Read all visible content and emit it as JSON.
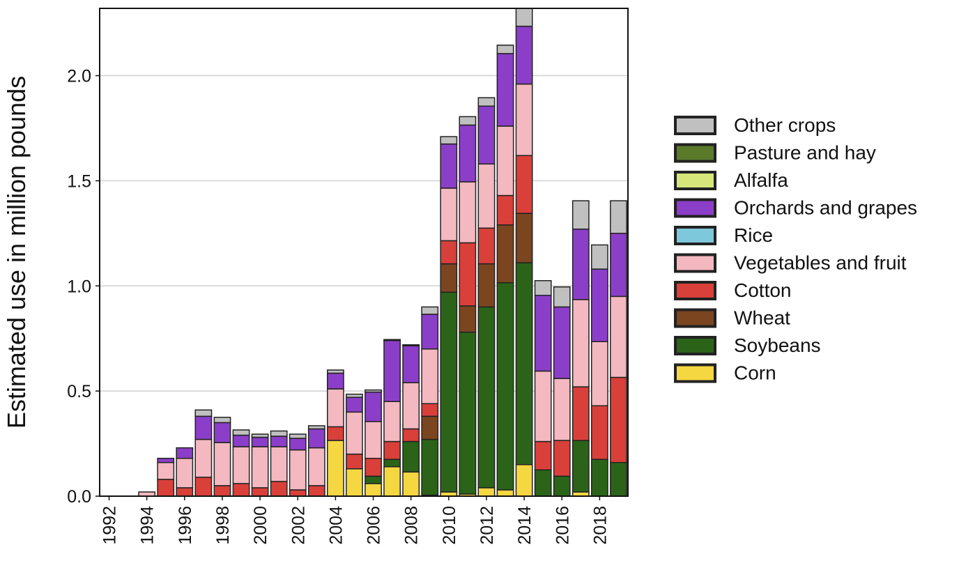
{
  "chart_data": {
    "type": "stacked-bar",
    "y_label": "Estimated use in million pounds",
    "x": [
      1992,
      1993,
      1994,
      1995,
      1996,
      1997,
      1998,
      1999,
      2000,
      2001,
      2002,
      2003,
      2004,
      2005,
      2006,
      2007,
      2008,
      2009,
      2010,
      2011,
      2012,
      2013,
      2014,
      2015,
      2016,
      2017,
      2018,
      2019
    ],
    "xlim": [
      1991.5,
      2019.5
    ],
    "xticks": [
      1992,
      1994,
      1996,
      1998,
      2000,
      2002,
      2004,
      2006,
      2008,
      2010,
      2012,
      2014,
      2016,
      2018
    ],
    "ylim": [
      0,
      2.32
    ],
    "yticks": [
      {
        "value": 0,
        "label": "0.0"
      },
      0.5,
      {
        "value": 1,
        "label": "1.0"
      },
      1.5,
      {
        "value": 2,
        "label": "2.0"
      }
    ],
    "grid": true,
    "legend": "right",
    "series": [
      {
        "name": "Corn",
        "color": "#f5d742",
        "values": [
          0,
          0,
          0,
          0,
          0,
          0,
          0,
          0,
          0,
          0,
          0,
          0,
          0.265,
          0.13,
          0.06,
          0.14,
          0.115,
          0.005,
          0.02,
          0.01,
          0.04,
          0.03,
          0.15,
          0,
          0,
          0.02,
          0,
          0
        ]
      },
      {
        "name": "Soybeans",
        "color": "#2b6419",
        "values": [
          0,
          0,
          0,
          0,
          0,
          0,
          0,
          0,
          0,
          0,
          0,
          0,
          0,
          0,
          0.035,
          0.035,
          0.145,
          0.265,
          0.95,
          0.77,
          0.86,
          0.985,
          0.96,
          0.125,
          0.095,
          0.245,
          0.175,
          0.16
        ]
      },
      {
        "name": "Wheat",
        "color": "#7b4520",
        "values": [
          0,
          0,
          0,
          0,
          0,
          0,
          0,
          0,
          0,
          0,
          0,
          0,
          0,
          0,
          0,
          0,
          0,
          0.11,
          0.135,
          0.125,
          0.205,
          0.275,
          0.235,
          0,
          0,
          0,
          0,
          0
        ]
      },
      {
        "name": "Cotton",
        "color": "#d9403a",
        "values": [
          0,
          0,
          0,
          0.08,
          0.04,
          0.09,
          0.05,
          0.06,
          0.04,
          0.07,
          0.03,
          0.05,
          0.065,
          0.07,
          0.085,
          0.085,
          0.06,
          0.06,
          0.11,
          0.3,
          0.17,
          0.14,
          0.275,
          0.135,
          0.17,
          0.255,
          0.255,
          0.405
        ]
      },
      {
        "name": "Vegetables and fruit",
        "color": "#f4b8c0",
        "values": [
          0,
          0,
          0.02,
          0.08,
          0.14,
          0.18,
          0.205,
          0.175,
          0.195,
          0.165,
          0.19,
          0.18,
          0.18,
          0.2,
          0.175,
          0.19,
          0.22,
          0.26,
          0.25,
          0.29,
          0.305,
          0.33,
          0.34,
          0.335,
          0.295,
          0.415,
          0.305,
          0.385
        ]
      },
      {
        "name": "Rice",
        "color": "#7ec8dc",
        "values": [
          0,
          0,
          0,
          0,
          0,
          0,
          0,
          0,
          0,
          0,
          0,
          0,
          0,
          0,
          0,
          0,
          0,
          0,
          0,
          0,
          0,
          0,
          0,
          0,
          0,
          0,
          0,
          0
        ]
      },
      {
        "name": "Orchards and grapes",
        "color": "#8b3fc8",
        "values": [
          0,
          0,
          0,
          0.02,
          0.05,
          0.11,
          0.095,
          0.055,
          0.045,
          0.05,
          0.055,
          0.09,
          0.075,
          0.07,
          0.14,
          0.29,
          0.175,
          0.165,
          0.21,
          0.27,
          0.275,
          0.345,
          0.275,
          0.36,
          0.34,
          0.335,
          0.345,
          0.3
        ]
      },
      {
        "name": "Alfalfa",
        "color": "#d6e67a",
        "values": [
          0,
          0,
          0,
          0,
          0,
          0,
          0,
          0,
          0,
          0,
          0,
          0,
          0,
          0,
          0,
          0,
          0,
          0,
          0,
          0,
          0,
          0,
          0,
          0,
          0,
          0,
          0,
          0
        ]
      },
      {
        "name": "Pasture and hay",
        "color": "#5a7a2a",
        "values": [
          0,
          0,
          0,
          0,
          0,
          0,
          0,
          0,
          0,
          0,
          0,
          0,
          0,
          0,
          0,
          0,
          0,
          0,
          0,
          0,
          0,
          0,
          0,
          0,
          0,
          0,
          0,
          0
        ]
      },
      {
        "name": "Other crops",
        "color": "#c0c0c0",
        "values": [
          0,
          0,
          0,
          0,
          0,
          0.03,
          0.025,
          0.025,
          0.015,
          0.025,
          0.02,
          0.015,
          0.015,
          0.015,
          0.01,
          0.005,
          0.005,
          0.035,
          0.035,
          0.04,
          0.04,
          0.04,
          0.09,
          0.07,
          0.095,
          0.135,
          0.115,
          0.155
        ]
      }
    ]
  }
}
